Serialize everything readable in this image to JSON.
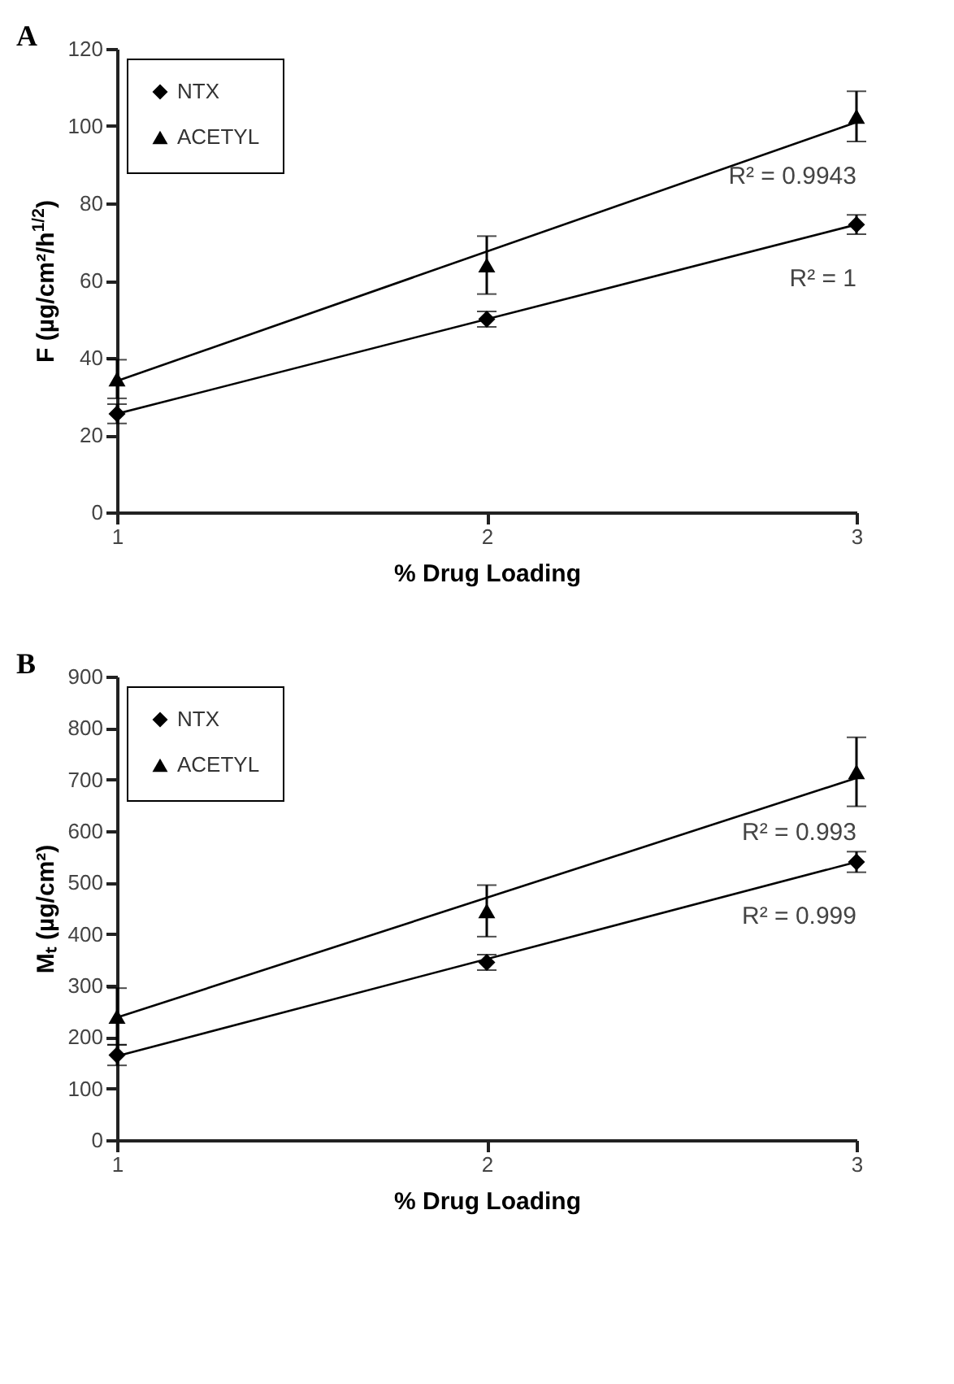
{
  "chart_data": [
    {
      "type": "scatter",
      "title": "A",
      "xlabel": "% Drug Loading",
      "ylabel": "F (µg/cm²/h$^{1/2}$)",
      "xlim": [
        1,
        3
      ],
      "xticks": [
        1,
        2,
        3
      ],
      "ylim": [
        0,
        120
      ],
      "yticks": [
        0,
        20,
        40,
        60,
        80,
        100,
        120
      ],
      "legend": "top left",
      "series": [
        {
          "name": "NTX",
          "color": "#000000",
          "marker": "diamond",
          "x": [
            1,
            2,
            3
          ],
          "values": [
            25.5,
            50,
            74.5
          ],
          "errors": [
            2.5,
            2,
            2.5
          ]
        },
        {
          "name": "ACETYL",
          "color": "#000000",
          "marker": "triangle",
          "x": [
            1,
            2,
            3
          ],
          "values": [
            34.5,
            64,
            102.5
          ],
          "errors": [
            5,
            7.5,
            6.5
          ]
        },
        {
          "type": "line",
          "color": "#000000",
          "x": [
            1,
            3
          ],
          "values": [
            25.5,
            74.5
          ]
        },
        {
          "type": "line",
          "color": "#000000",
          "x": [
            1,
            3
          ],
          "values": [
            34,
            101
          ]
        }
      ],
      "annotations": [
        "R² = 1",
        "R² = 0.9943"
      ]
    },
    {
      "type": "scatter",
      "title": "B",
      "xlabel": "% Drug Loading",
      "ylabel": "Mₜ (µg/cm²)",
      "xlim": [
        1,
        3
      ],
      "xticks": [
        1,
        2,
        3
      ],
      "ylim": [
        0,
        900
      ],
      "yticks": [
        0,
        100,
        200,
        300,
        400,
        500,
        600,
        700,
        800,
        900
      ],
      "legend": "top left",
      "series": [
        {
          "name": "NTX",
          "color": "#000000",
          "marker": "diamond",
          "x": [
            1,
            2,
            3
          ],
          "values": [
            165,
            345,
            540
          ],
          "errors": [
            20,
            15,
            20
          ]
        },
        {
          "name": "ACETYL",
          "color": "#000000",
          "marker": "triangle",
          "x": [
            1,
            2,
            3
          ],
          "values": [
            240,
            445,
            715
          ],
          "errors": [
            55,
            50,
            67
          ]
        },
        {
          "type": "line",
          "color": "#000000",
          "x": [
            1,
            3
          ],
          "values": [
            163,
            540
          ]
        },
        {
          "type": "line",
          "color": "#000000",
          "x": [
            1,
            3
          ],
          "values": [
            238,
            703
          ]
        }
      ],
      "annotations": [
        "R² = 0.999",
        "R² = 0.993"
      ]
    }
  ]
}
